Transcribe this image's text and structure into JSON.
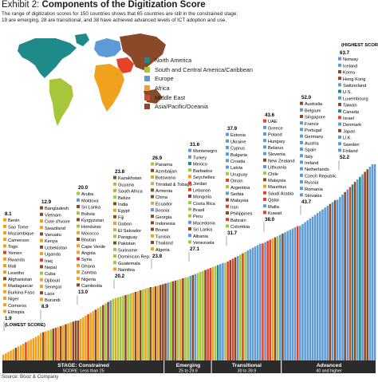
{
  "header": {
    "exhibit": "Exhibit 2:",
    "title": "Components of the Digitization Score",
    "subtitle": "The range of digitization scores for 150 countries shows that 65 countries are still in the constrained stage; 19 are emerging, 28 are transitional, and 38 have achieved advanced levels of ICT adoption and use."
  },
  "legend": [
    {
      "label": "North America",
      "color": "#1f8a8a"
    },
    {
      "label": "South and Central America/Caribbean",
      "color": "#a6c63c"
    },
    {
      "label": "Europe",
      "color": "#5c9bd6"
    },
    {
      "label": "Africa",
      "color": "#f0a21f"
    },
    {
      "label": "Middle East",
      "color": "#e5422a"
    },
    {
      "label": "Asia/Pacific/Oceania",
      "color": "#8a4a2a"
    }
  ],
  "colors": {
    "NA": "#1f8a8a",
    "SA": "#a6c63c",
    "EU": "#5c9bd6",
    "AF": "#f0a21f",
    "ME": "#e5422a",
    "AP": "#8a4a2a"
  },
  "source": "Source: Booz & Company",
  "chart_data": {
    "type": "bar",
    "total_countries": 150,
    "stages": [
      {
        "name": "STAGE: Constrained",
        "range": "SCORE: Less than 25",
        "count": 65
      },
      {
        "name": "Emerging",
        "range": "25 to 29.9",
        "count": 19
      },
      {
        "name": "Transitional",
        "range": "30 to 39.9",
        "count": 28
      },
      {
        "name": "Advanced",
        "range": "40 and higher",
        "count": 38
      }
    ],
    "groups": [
      {
        "top": "8.1",
        "bottom": "1.9",
        "countries": [
          "Benin",
          "Sao Tome",
          "Mozambique",
          "Cameroon",
          "Togo",
          "Yemen",
          "Rwanda",
          "Mali",
          "Lesotho",
          "Afghanistan",
          "Madagascar",
          "Burkina Faso",
          "Niger",
          "Comoros",
          "Ethiopia"
        ],
        "regions": [
          "AF",
          "AF",
          "AF",
          "AF",
          "AF",
          "ME",
          "AF",
          "AF",
          "AF",
          "AP",
          "AF",
          "AF",
          "AF",
          "AF",
          "AF"
        ],
        "bottom_note": "(LOWEST SCORE)"
      },
      {
        "top": "12.9",
        "bottom": "8.9",
        "countries": [
          "Bangladesh",
          "Vietnam",
          "Cote d'Ivoire",
          "Swaziland",
          "Vanuatu",
          "Kenya",
          "Uzbekistan",
          "Uganda",
          "Iraq",
          "Nepal",
          "Cuba",
          "Djibouti",
          "Senegal",
          "Laos",
          "Burundi"
        ],
        "regions": [
          "AP",
          "AP",
          "AF",
          "AF",
          "AP",
          "AF",
          "AP",
          "AF",
          "ME",
          "AP",
          "SA",
          "AF",
          "AF",
          "AP",
          "AF"
        ]
      },
      {
        "top": "20.0",
        "bottom": "13.0",
        "countries": [
          "Aruba",
          "Moldova",
          "Sri Lanka",
          "Bolivia",
          "Kyrgyzstan",
          "Honduras",
          "Morocco",
          "Bhutan",
          "Cape Verde",
          "Angola",
          "Syria",
          "Ghana",
          "Zambia",
          "Nigeria",
          "Cambodia"
        ],
        "regions": [
          "SA",
          "EU",
          "AP",
          "SA",
          "AP",
          "SA",
          "AF",
          "AP",
          "AF",
          "AF",
          "ME",
          "AF",
          "AF",
          "AF",
          "AP"
        ]
      },
      {
        "top": "23.8",
        "bottom": "20.2",
        "countries": [
          "Kazakhstan",
          "Guyana",
          "South Africa",
          "Belize",
          "India",
          "Egypt",
          "Fiji",
          "Gabon",
          "El Salvador",
          "Paraguay",
          "Pakistan",
          "Suriname",
          "Dominican Rep.",
          "Guatemala",
          "Namibia"
        ],
        "regions": [
          "AP",
          "SA",
          "AF",
          "SA",
          "AP",
          "AF",
          "AP",
          "AF",
          "SA",
          "SA",
          "AP",
          "SA",
          "SA",
          "SA",
          "AF"
        ]
      },
      {
        "top": "26.9",
        "bottom": "23.8",
        "countries": [
          "Panama",
          "Azerbaijan",
          "Botswana",
          "Trinidad & Tobago",
          "Armenia",
          "China",
          "Ecuador",
          "Bosnia",
          "Georgia",
          "Indonesia",
          "Brunei",
          "Tunisia",
          "Thailand",
          "Algeria"
        ],
        "regions": [
          "SA",
          "AP",
          "AF",
          "SA",
          "AP",
          "AP",
          "SA",
          "EU",
          "AP",
          "AP",
          "AP",
          "AF",
          "AP",
          "AF"
        ]
      },
      {
        "top": "31.6",
        "bottom": "27.1",
        "countries": [
          "Montenegro",
          "Turkey",
          "Mexico",
          "Barbados",
          "Seychelles",
          "Jordan",
          "Lebanon",
          "Mongolia",
          "Costa Rica",
          "Brazil",
          "Peru",
          "Macedonia",
          "Sri Lanka",
          "Albania",
          "Venezuela"
        ],
        "regions": [
          "EU",
          "EU",
          "NA",
          "SA",
          "AF",
          "ME",
          "ME",
          "AP",
          "SA",
          "SA",
          "SA",
          "EU",
          "AP",
          "EU",
          "SA"
        ]
      },
      {
        "top": "37.9",
        "bottom": "31.7",
        "countries": [
          "Estonia",
          "Ukraine",
          "Cyprus",
          "Bulgaria",
          "Croatia",
          "Latvia",
          "Uruguay",
          "Oman",
          "Argentina",
          "Serbia",
          "Malaysia",
          "Iran",
          "Philippines",
          "Bahrain",
          "Colombia"
        ],
        "regions": [
          "EU",
          "EU",
          "EU",
          "EU",
          "EU",
          "EU",
          "SA",
          "ME",
          "SA",
          "EU",
          "AP",
          "ME",
          "AP",
          "ME",
          "SA"
        ]
      },
      {
        "top": "43.6",
        "bottom": "38.0",
        "countries": [
          "UAE",
          "Greece",
          "Poland",
          "Hungary",
          "Belarus",
          "Slovenia",
          "New Zealand",
          "Lithuania",
          "Chile",
          "Malaysia",
          "Mauritius",
          "Saudi Arabia",
          "Qatar",
          "Malta",
          "Kuwait"
        ],
        "regions": [
          "ME",
          "EU",
          "EU",
          "EU",
          "EU",
          "EU",
          "AP",
          "EU",
          "SA",
          "AP",
          "AF",
          "ME",
          "ME",
          "EU",
          "ME"
        ]
      },
      {
        "top": "52.0",
        "bottom": "43.7",
        "countries": [
          "Australia",
          "Belgium",
          "Singapore",
          "France",
          "Portugal",
          "Germany",
          "Austria",
          "Spain",
          "Italy",
          "Ireland",
          "Netherlands",
          "Czech Republic",
          "Russia",
          "Romania",
          "Slovakia"
        ],
        "regions": [
          "AP",
          "EU",
          "AP",
          "EU",
          "EU",
          "EU",
          "EU",
          "EU",
          "EU",
          "EU",
          "EU",
          "EU",
          "EU",
          "EU",
          "EU"
        ]
      },
      {
        "top": "63.7",
        "top_note": "(HIGHEST SCORE)",
        "bottom": "52.2",
        "countries": [
          "Norway",
          "Iceland",
          "Korea",
          "Hong Kong",
          "Switzerland",
          "U.S.",
          "Luxembourg",
          "Taiwan",
          "Canada",
          "Israel",
          "Denmark",
          "Japan",
          "U.K.",
          "Sweden",
          "Finland"
        ],
        "regions": [
          "EU",
          "EU",
          "AP",
          "AP",
          "EU",
          "NA",
          "EU",
          "AP",
          "NA",
          "ME",
          "EU",
          "AP",
          "EU",
          "EU",
          "EU"
        ]
      }
    ]
  }
}
